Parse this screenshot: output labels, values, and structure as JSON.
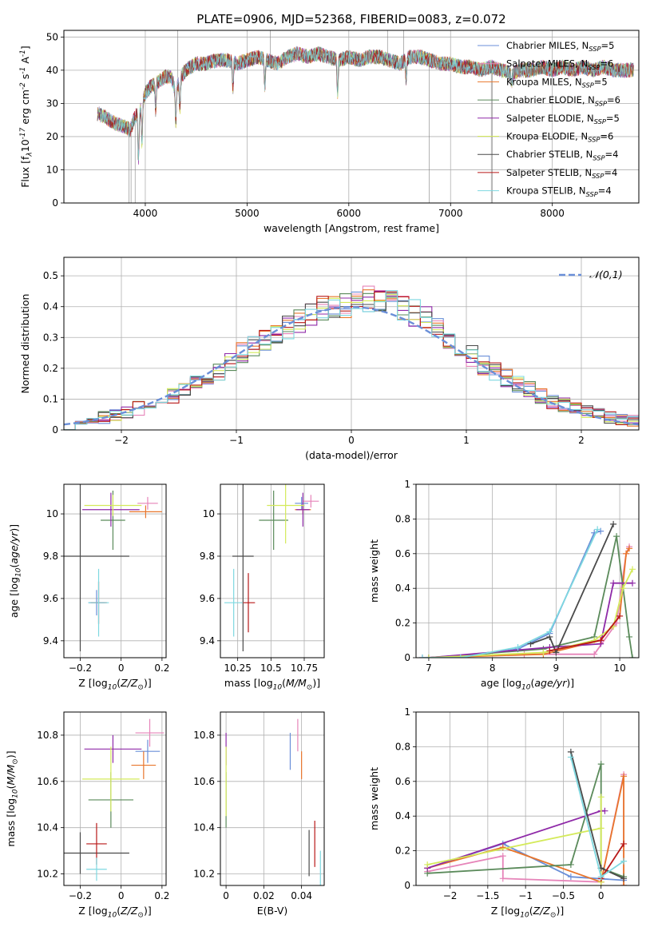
{
  "title": "PLATE=0906, MJD=52368, FIBERID=0083, z=0.072",
  "palette": {
    "Chabrier MILES": "#6a8fd8",
    "Salpeter MILES": "#e684b9",
    "Kroupa MILES": "#e8762c",
    "Chabrier ELODIE": "#5a8a5a",
    "Salpeter ELODIE": "#8f2aa8",
    "Kroupa ELODIE": "#d4ea5a",
    "Chabrier STELIB": "#4a4a4a",
    "Salpeter STELIB": "#b81818",
    "Kroupa STELIB": "#7ed8e0"
  },
  "chart_data": [
    {
      "id": "spectrum",
      "type": "line",
      "xlabel": "wavelength [Angstrom, rest frame]",
      "ylabel": "Flux [f$_{\\lambda}$10$^{-17}$ erg cm$^{-2}$ s$^{-1}$ A$^{-1}$]",
      "xlim": [
        3200,
        8850
      ],
      "ylim": [
        0,
        52
      ],
      "xticks": [
        4000,
        5000,
        6000,
        7000,
        8000
      ],
      "yticks": [
        0,
        10,
        20,
        30,
        40,
        50
      ],
      "legend": "top-right",
      "series": [
        {
          "name": "Chabrier MILES",
          "nssp": "5"
        },
        {
          "name": "Salpeter MILES",
          "nssp": "6"
        },
        {
          "name": "Kroupa MILES",
          "nssp": "5"
        },
        {
          "name": "Chabrier ELODIE",
          "nssp": "6"
        },
        {
          "name": "Salpeter ELODIE",
          "nssp": "5"
        },
        {
          "name": "Kroupa ELODIE",
          "nssp": "6"
        },
        {
          "name": "Chabrier STELIB",
          "nssp": "4"
        },
        {
          "name": "Salpeter STELIB",
          "nssp": "4"
        },
        {
          "name": "Kroupa STELIB",
          "nssp": "4"
        }
      ],
      "data_series": {
        "name": "",
        "color": "#808080",
        "x": [
          3530,
          3600,
          3700,
          3800,
          3850,
          3900,
          3950,
          4000,
          4050,
          4100,
          4150,
          4200,
          4250,
          4300,
          4350,
          4400,
          4450,
          4500,
          4600,
          4700,
          4800,
          4900,
          5000,
          5100,
          5200,
          5300,
          5400,
          5500,
          5600,
          5700,
          5800,
          5900,
          6000,
          6100,
          6200,
          6300,
          6400,
          6500,
          6600,
          6700,
          6800,
          6900,
          7000,
          7100,
          7200,
          7300,
          7400,
          7500,
          7600,
          7700,
          7800,
          7900,
          8000,
          8100,
          8200,
          8300,
          8400,
          8500,
          8600,
          8700,
          8800
        ],
        "y": [
          27,
          26,
          24,
          23,
          22,
          26,
          28,
          33,
          35,
          36,
          37,
          38,
          38,
          34,
          38,
          40,
          41,
          42,
          42,
          43,
          43,
          42,
          43,
          44,
          43,
          42,
          44,
          45,
          44,
          45,
          44,
          43,
          44,
          43,
          44,
          44,
          43,
          42,
          44,
          44,
          43,
          42,
          42,
          41,
          41,
          40,
          41,
          40,
          39,
          40,
          40,
          41,
          40,
          41,
          40,
          41,
          40,
          41,
          40,
          40,
          40
        ]
      }
    },
    {
      "id": "residuals",
      "type": "histogram",
      "xlabel": "(data-model)/error",
      "ylabel": "Normed distribution",
      "xlim": [
        -2.5,
        2.5
      ],
      "ylim": [
        0,
        0.56
      ],
      "xticks": [
        -2,
        -1,
        0,
        1,
        2
      ],
      "yticks": [
        0,
        0.1,
        0.2,
        0.3,
        0.4,
        0.5
      ],
      "legend": "top-right",
      "normal_label": "$\\mathcal{N}(0,1)$",
      "bin_edges": [
        -2.5,
        -2.4,
        -2.3,
        -2.2,
        -2.1,
        -2.0,
        -1.9,
        -1.8,
        -1.7,
        -1.6,
        -1.5,
        -1.4,
        -1.3,
        -1.2,
        -1.1,
        -1.0,
        -0.9,
        -0.8,
        -0.7,
        -0.6,
        -0.5,
        -0.4,
        -0.3,
        -0.2,
        -0.1,
        0.0,
        0.1,
        0.2,
        0.3,
        0.4,
        0.5,
        0.6,
        0.7,
        0.8,
        0.9,
        1.0,
        1.1,
        1.2,
        1.3,
        1.4,
        1.5,
        1.6,
        1.7,
        1.8,
        1.9,
        2.0,
        2.1,
        2.2,
        2.3,
        2.4,
        2.5
      ],
      "base_values": [
        0.02,
        0.03,
        0.03,
        0.04,
        0.05,
        0.06,
        0.07,
        0.08,
        0.09,
        0.11,
        0.13,
        0.15,
        0.17,
        0.19,
        0.22,
        0.25,
        0.27,
        0.29,
        0.31,
        0.33,
        0.35,
        0.37,
        0.39,
        0.4,
        0.41,
        0.42,
        0.43,
        0.42,
        0.41,
        0.4,
        0.38,
        0.36,
        0.33,
        0.3,
        0.27,
        0.24,
        0.21,
        0.19,
        0.17,
        0.15,
        0.13,
        0.11,
        0.09,
        0.08,
        0.07,
        0.06,
        0.05,
        0.04,
        0.03,
        0.03
      ]
    },
    {
      "id": "age-vs-Z",
      "type": "errorbar",
      "xlabel": "Z [log$_{10}$($Z/Z_\\odot$)]",
      "ylabel": "age  [log$_{10}$($age/yr$)]",
      "xlim": [
        -0.28,
        0.22
      ],
      "ylim": [
        9.32,
        10.14
      ],
      "xticks": [
        -0.2,
        0.0,
        0.2
      ],
      "yticks": [
        9.4,
        9.6,
        9.8,
        10.0
      ],
      "points": [
        {
          "series": "Chabrier MILES",
          "x": -0.12,
          "y": 9.58,
          "xerr": 0.04,
          "yerr": 0.06
        },
        {
          "series": "Salpeter MILES",
          "x": 0.13,
          "y": 10.05,
          "xerr": 0.05,
          "yerr": 0.03
        },
        {
          "series": "Kroupa MILES",
          "x": 0.12,
          "y": 10.01,
          "xerr": 0.08,
          "yerr": 0.03
        },
        {
          "series": "Chabrier ELODIE",
          "x": -0.04,
          "y": 9.97,
          "xerr": 0.06,
          "yerr": 0.14
        },
        {
          "series": "Salpeter ELODIE",
          "x": -0.05,
          "y": 10.02,
          "xerr": 0.14,
          "yerr": 0.08
        },
        {
          "series": "Kroupa ELODIE",
          "x": -0.04,
          "y": 10.04,
          "xerr": 0.14,
          "yerr": 0.05
        },
        {
          "series": "Chabrier STELIB",
          "x": -0.2,
          "y": 9.8,
          "xerr": 0.24,
          "yerr": 0.45
        },
        {
          "series": "Salpeter STELIB",
          "x": -0.11,
          "y": 9.58,
          "xerr": 0.04,
          "yerr": 0.1
        },
        {
          "series": "Kroupa STELIB",
          "x": -0.11,
          "y": 9.58,
          "xerr": 0.05,
          "yerr": 0.16
        }
      ]
    },
    {
      "id": "age-vs-mass",
      "type": "errorbar",
      "xlabel": "mass [log$_{10}$($M/M_\\odot$)]",
      "ylabel": "",
      "xlim": [
        10.12,
        10.9
      ],
      "ylim": [
        9.32,
        10.14
      ],
      "xticks": [
        10.25,
        10.5,
        10.75
      ],
      "yticks": [
        9.4,
        9.6,
        9.8,
        10.0
      ],
      "points": [
        {
          "series": "Chabrier MILES",
          "x": 10.73,
          "y": 10.05,
          "xerr": 0.05,
          "yerr": 0.03
        },
        {
          "series": "Salpeter MILES",
          "x": 10.8,
          "y": 10.06,
          "xerr": 0.06,
          "yerr": 0.03
        },
        {
          "series": "Kroupa MILES",
          "x": 10.74,
          "y": 10.02,
          "xerr": 0.06,
          "yerr": 0.02
        },
        {
          "series": "Chabrier ELODIE",
          "x": 10.52,
          "y": 9.97,
          "xerr": 0.11,
          "yerr": 0.14
        },
        {
          "series": "Salpeter ELODIE",
          "x": 10.74,
          "y": 10.02,
          "xerr": 0.05,
          "yerr": 0.08
        },
        {
          "series": "Kroupa ELODIE",
          "x": 10.61,
          "y": 10.04,
          "xerr": 0.14,
          "yerr": 0.18
        },
        {
          "series": "Chabrier STELIB",
          "x": 10.29,
          "y": 9.8,
          "xerr": 0.08,
          "yerr": 0.45
        },
        {
          "series": "Salpeter STELIB",
          "x": 10.33,
          "y": 9.58,
          "xerr": 0.05,
          "yerr": 0.14
        },
        {
          "series": "Kroupa STELIB",
          "x": 10.22,
          "y": 9.58,
          "xerr": 0.07,
          "yerr": 0.16
        }
      ]
    },
    {
      "id": "mass-weight-vs-age",
      "type": "line",
      "xlabel": "age  [log$_{10}$($age/yr$)]",
      "ylabel": "mass weight",
      "xlim": [
        6.8,
        10.3
      ],
      "ylim": [
        0,
        1
      ],
      "xticks": [
        7,
        8,
        9,
        10
      ],
      "yticks": [
        0,
        0.2,
        0.4,
        0.6,
        0.8,
        1.0
      ],
      "series": [
        {
          "name": "Chabrier MILES",
          "x": [
            6.9,
            7.5,
            8.4,
            8.9,
            9.6,
            9.7
          ],
          "y": [
            0.0,
            0.0,
            0.05,
            0.14,
            0.72,
            0.73
          ]
        },
        {
          "name": "Salpeter MILES",
          "x": [
            6.9,
            8.5,
            9.6,
            9.95,
            10.1,
            10.15
          ],
          "y": [
            0.0,
            0.02,
            0.02,
            0.2,
            0.6,
            0.64
          ]
        },
        {
          "name": "Kroupa MILES",
          "x": [
            7.0,
            8.8,
            9.7,
            10.0,
            10.1,
            10.15
          ],
          "y": [
            0.0,
            0.02,
            0.1,
            0.24,
            0.6,
            0.63
          ]
        },
        {
          "name": "Chabrier ELODIE",
          "x": [
            7.0,
            8.8,
            9.6,
            9.95,
            10.15,
            10.2
          ],
          "y": [
            0.0,
            0.05,
            0.12,
            0.7,
            0.12,
            0.0
          ]
        },
        {
          "name": "Salpeter ELODIE",
          "x": [
            7.0,
            8.9,
            9.7,
            9.9,
            10.2
          ],
          "y": [
            0.0,
            0.06,
            0.08,
            0.43,
            0.43
          ]
        },
        {
          "name": "Kroupa ELODIE",
          "x": [
            7.0,
            8.8,
            9.6,
            9.9,
            10.05,
            10.2
          ],
          "y": [
            0.0,
            0.03,
            0.1,
            0.18,
            0.4,
            0.51
          ]
        },
        {
          "name": "Chabrier STELIB",
          "x": [
            8.6,
            8.9,
            9.0,
            9.9
          ],
          "y": [
            0.08,
            0.12,
            0.03,
            0.77
          ]
        },
        {
          "name": "Salpeter STELIB",
          "x": [
            8.9,
            9.7,
            10.0
          ],
          "y": [
            0.04,
            0.1,
            0.24
          ]
        },
        {
          "name": "Kroupa STELIB",
          "x": [
            6.9,
            7.5,
            8.4,
            8.9,
            9.65
          ],
          "y": [
            0.0,
            0.0,
            0.06,
            0.15,
            0.74
          ]
        }
      ]
    },
    {
      "id": "mass-vs-Z",
      "type": "errorbar",
      "xlabel": "Z [log$_{10}$($Z/Z_\\odot$)]",
      "ylabel": "mass [log$_{10}$($M/M_\\odot$)]",
      "xlim": [
        -0.28,
        0.22
      ],
      "ylim": [
        10.15,
        10.9
      ],
      "xticks": [
        -0.2,
        0.0,
        0.2
      ],
      "yticks": [
        10.2,
        10.4,
        10.6,
        10.8
      ],
      "points": [
        {
          "series": "Chabrier MILES",
          "x": 0.13,
          "y": 10.73,
          "xerr": 0.06,
          "yerr": 0.05
        },
        {
          "series": "Salpeter MILES",
          "x": 0.14,
          "y": 10.81,
          "xerr": 0.07,
          "yerr": 0.06
        },
        {
          "series": "Kroupa MILES",
          "x": 0.11,
          "y": 10.67,
          "xerr": 0.06,
          "yerr": 0.06
        },
        {
          "series": "Chabrier ELODIE",
          "x": -0.05,
          "y": 10.52,
          "xerr": 0.11,
          "yerr": 0.12
        },
        {
          "series": "Salpeter ELODIE",
          "x": -0.04,
          "y": 10.74,
          "xerr": 0.14,
          "yerr": 0.06
        },
        {
          "series": "Kroupa ELODIE",
          "x": -0.05,
          "y": 10.61,
          "xerr": 0.14,
          "yerr": 0.14
        },
        {
          "series": "Chabrier STELIB",
          "x": -0.2,
          "y": 10.29,
          "xerr": 0.24,
          "yerr": 0.09
        },
        {
          "series": "Salpeter STELIB",
          "x": -0.12,
          "y": 10.33,
          "xerr": 0.05,
          "yerr": 0.09
        },
        {
          "series": "Kroupa STELIB",
          "x": -0.12,
          "y": 10.22,
          "xerr": 0.05,
          "yerr": 0.05
        }
      ]
    },
    {
      "id": "mass-vs-ebv",
      "type": "errorbar",
      "xlabel": "E(B-V)",
      "ylabel": "",
      "xlim": [
        -0.003,
        0.052
      ],
      "ylim": [
        10.15,
        10.9
      ],
      "xticks": [
        0.0,
        0.02,
        0.04
      ],
      "yticks": [
        10.2,
        10.4,
        10.6,
        10.8
      ],
      "points": [
        {
          "series": "Chabrier MILES",
          "x": 0.034,
          "y": 10.73,
          "xerr": 0.0,
          "yerr": 0.08
        },
        {
          "series": "Salpeter MILES",
          "x": 0.038,
          "y": 10.8,
          "xerr": 0.0,
          "yerr": 0.07
        },
        {
          "series": "Kroupa MILES",
          "x": 0.04,
          "y": 10.67,
          "xerr": 0.0,
          "yerr": 0.06
        },
        {
          "series": "Chabrier ELODIE",
          "x": 0.0,
          "y": 10.52,
          "xerr": 0.0,
          "yerr": 0.12
        },
        {
          "series": "Salpeter ELODIE",
          "x": 0.0,
          "y": 10.74,
          "xerr": 0.0,
          "yerr": 0.07
        },
        {
          "series": "Kroupa ELODIE",
          "x": 0.0,
          "y": 10.6,
          "xerr": 0.0,
          "yerr": 0.15
        },
        {
          "series": "Chabrier STELIB",
          "x": 0.044,
          "y": 10.29,
          "xerr": 0.0,
          "yerr": 0.1
        },
        {
          "series": "Salpeter STELIB",
          "x": 0.047,
          "y": 10.33,
          "xerr": 0.0,
          "yerr": 0.1
        },
        {
          "series": "Kroupa STELIB",
          "x": 0.05,
          "y": 10.22,
          "xerr": 0.0,
          "yerr": 0.08
        }
      ]
    },
    {
      "id": "mass-weight-vs-Z",
      "type": "line",
      "xlabel": "Z [log$_{10}$($Z/Z_\\odot$)]",
      "ylabel": "mass weight",
      "xlim": [
        -2.45,
        0.5
      ],
      "ylim": [
        0,
        1
      ],
      "xticks": [
        -2.0,
        -1.5,
        -1.0,
        -0.5,
        0.0
      ],
      "yticks": [
        0,
        0.2,
        0.4,
        0.6,
        0.8,
        1.0
      ],
      "series": [
        {
          "name": "Chabrier MILES",
          "x": [
            -2.3,
            -1.3,
            -0.4,
            0.3
          ],
          "y": [
            0.1,
            0.24,
            0.05,
            0.03
          ]
        },
        {
          "name": "Salpeter MILES",
          "x": [
            -2.3,
            -1.3,
            -1.3,
            0.0,
            0.3,
            0.3
          ],
          "y": [
            0.08,
            0.17,
            0.04,
            0.02,
            0.64,
            0.0
          ]
        },
        {
          "name": "Kroupa MILES",
          "x": [
            -2.3,
            -1.3,
            0.0,
            0.3,
            0.3
          ],
          "y": [
            0.1,
            0.22,
            0.02,
            0.63,
            0.0
          ]
        },
        {
          "name": "Chabrier ELODIE",
          "x": [
            -2.3,
            -0.4,
            0.0,
            0.0,
            0.3
          ],
          "y": [
            0.07,
            0.12,
            0.7,
            0.1,
            0.05
          ]
        },
        {
          "name": "Salpeter ELODIE",
          "x": [
            -2.3,
            0.0,
            0.05
          ],
          "y": [
            0.1,
            0.43,
            0.43
          ]
        },
        {
          "name": "Kroupa ELODIE",
          "x": [
            -2.3,
            0.0,
            0.0,
            0.0
          ],
          "y": [
            0.12,
            0.33,
            0.51,
            0.02
          ]
        },
        {
          "name": "Chabrier STELIB",
          "x": [
            -0.4,
            0.0,
            0.3
          ],
          "y": [
            0.77,
            0.1,
            0.04
          ]
        },
        {
          "name": "Salpeter STELIB",
          "x": [
            0.0,
            0.3
          ],
          "y": [
            0.04,
            0.24
          ]
        },
        {
          "name": "Kroupa STELIB",
          "x": [
            -0.4,
            0.0,
            0.3
          ],
          "y": [
            0.74,
            0.05,
            0.14
          ]
        }
      ]
    }
  ]
}
